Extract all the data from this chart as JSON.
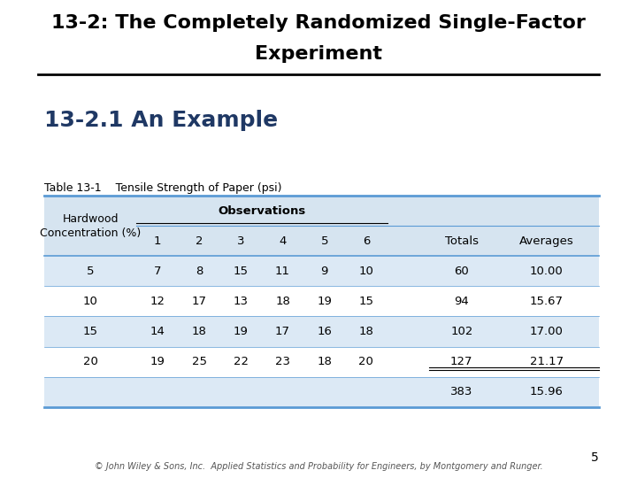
{
  "title_line1": "13-2: The Completely Randomized Single-Factor",
  "title_line2": "Experiment",
  "subtitle": "13-2.1 An Example",
  "table_label": "Table 13-1",
  "table_desc": "Tensile Strength of Paper (psi)",
  "col_header_obs": "Observations",
  "obs_cols": [
    "1",
    "2",
    "3",
    "4",
    "5",
    "6"
  ],
  "rows": [
    {
      "conc": "5",
      "obs": [
        7,
        8,
        15,
        11,
        9,
        10
      ],
      "total": "60",
      "avg": "10.00",
      "shaded": true
    },
    {
      "conc": "10",
      "obs": [
        12,
        17,
        13,
        18,
        19,
        15
      ],
      "total": "94",
      "avg": "15.67",
      "shaded": false
    },
    {
      "conc": "15",
      "obs": [
        14,
        18,
        19,
        17,
        16,
        18
      ],
      "total": "102",
      "avg": "17.00",
      "shaded": true
    },
    {
      "conc": "20",
      "obs": [
        19,
        25,
        22,
        23,
        18,
        20
      ],
      "total": "127",
      "avg": "21.17",
      "shaded": false
    }
  ],
  "footer_total": "383",
  "footer_avg": "15.96",
  "page_num": "5",
  "copyright": "© John Wiley & Sons, Inc.  Applied Statistics and Probability for Engineers, by Montgomery and Runger.",
  "bg_color": "#ffffff",
  "header_bg": "#d6e4f0",
  "shaded_row_bg": "#dce9f5",
  "unshaded_row_bg": "#ffffff",
  "footer_row_bg": "#dce9f5",
  "table_border_color": "#5b9bd5",
  "title_color": "#000000",
  "subtitle_color": "#1f3864",
  "text_color": "#000000",
  "title_fontsize": 16,
  "subtitle_fontsize": 18,
  "table_label_fontsize": 9,
  "table_fontsize": 9.5,
  "footer_fontsize": 7
}
